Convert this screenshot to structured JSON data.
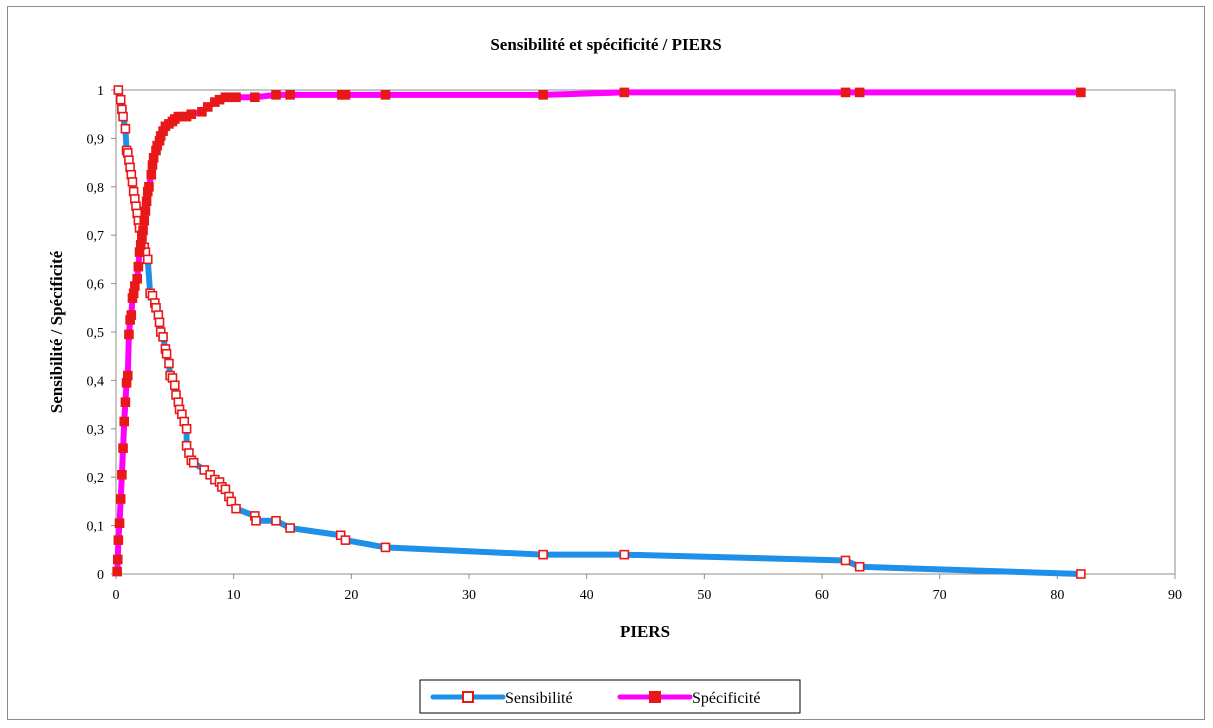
{
  "chart_data": {
    "type": "line",
    "title": "Sensibilité et spécificité / PIERS",
    "xlabel": "PIERS",
    "ylabel": "Sensibilité / Spécificité",
    "xlim": [
      0,
      90
    ],
    "ylim": [
      0,
      1
    ],
    "x_ticks": [
      "0",
      "10",
      "20",
      "30",
      "40",
      "50",
      "60",
      "70",
      "80",
      "90"
    ],
    "y_ticks": [
      "0",
      "0,1",
      "0,2",
      "0,3",
      "0,4",
      "0,5",
      "0,6",
      "0,7",
      "0,8",
      "0,9",
      "1"
    ],
    "grid": false,
    "legend_position": "bottom",
    "series": [
      {
        "name": "Sensibilité",
        "line_color": "#1e90e8",
        "marker": "open-square",
        "marker_color": "#e81818",
        "points": [
          [
            0.2,
            1.0
          ],
          [
            0.4,
            0.98
          ],
          [
            0.5,
            0.96
          ],
          [
            0.6,
            0.945
          ],
          [
            0.8,
            0.92
          ],
          [
            0.9,
            0.875
          ],
          [
            1.0,
            0.87
          ],
          [
            1.1,
            0.855
          ],
          [
            1.2,
            0.84
          ],
          [
            1.3,
            0.825
          ],
          [
            1.4,
            0.81
          ],
          [
            1.5,
            0.79
          ],
          [
            1.6,
            0.775
          ],
          [
            1.7,
            0.76
          ],
          [
            1.8,
            0.745
          ],
          [
            1.9,
            0.73
          ],
          [
            2.0,
            0.715
          ],
          [
            2.2,
            0.7
          ],
          [
            2.4,
            0.675
          ],
          [
            2.5,
            0.665
          ],
          [
            2.7,
            0.65
          ],
          [
            2.9,
            0.58
          ],
          [
            3.1,
            0.575
          ],
          [
            3.3,
            0.56
          ],
          [
            3.4,
            0.55
          ],
          [
            3.6,
            0.535
          ],
          [
            3.7,
            0.52
          ],
          [
            3.8,
            0.5
          ],
          [
            4.0,
            0.49
          ],
          [
            4.2,
            0.465
          ],
          [
            4.3,
            0.455
          ],
          [
            4.5,
            0.435
          ],
          [
            4.6,
            0.41
          ],
          [
            4.8,
            0.405
          ],
          [
            5.0,
            0.39
          ],
          [
            5.1,
            0.37
          ],
          [
            5.3,
            0.355
          ],
          [
            5.4,
            0.34
          ],
          [
            5.6,
            0.33
          ],
          [
            5.8,
            0.315
          ],
          [
            6.0,
            0.3
          ],
          [
            6.0,
            0.265
          ],
          [
            6.2,
            0.25
          ],
          [
            6.4,
            0.235
          ],
          [
            6.6,
            0.23
          ],
          [
            7.5,
            0.215
          ],
          [
            8.0,
            0.205
          ],
          [
            8.4,
            0.195
          ],
          [
            8.8,
            0.19
          ],
          [
            9.0,
            0.18
          ],
          [
            9.3,
            0.175
          ],
          [
            9.6,
            0.16
          ],
          [
            9.8,
            0.15
          ],
          [
            10.2,
            0.135
          ],
          [
            11.8,
            0.12
          ],
          [
            11.9,
            0.11
          ],
          [
            13.6,
            0.11
          ],
          [
            14.8,
            0.095
          ],
          [
            19.1,
            0.08
          ],
          [
            19.5,
            0.07
          ],
          [
            22.9,
            0.055
          ],
          [
            36.3,
            0.04
          ],
          [
            43.2,
            0.04
          ],
          [
            62.0,
            0.028
          ],
          [
            63.2,
            0.015
          ],
          [
            82.0,
            0.0
          ]
        ]
      },
      {
        "name": "Spécificité",
        "line_color": "#ff00ff",
        "marker": "filled-square",
        "marker_color": "#e81818",
        "points": [
          [
            0.1,
            0.005
          ],
          [
            0.15,
            0.03
          ],
          [
            0.2,
            0.07
          ],
          [
            0.3,
            0.105
          ],
          [
            0.4,
            0.155
          ],
          [
            0.5,
            0.205
          ],
          [
            0.6,
            0.26
          ],
          [
            0.7,
            0.315
          ],
          [
            0.8,
            0.355
          ],
          [
            0.9,
            0.395
          ],
          [
            1.0,
            0.41
          ],
          [
            1.1,
            0.495
          ],
          [
            1.2,
            0.525
          ],
          [
            1.3,
            0.535
          ],
          [
            1.4,
            0.57
          ],
          [
            1.5,
            0.58
          ],
          [
            1.6,
            0.595
          ],
          [
            1.8,
            0.61
          ],
          [
            1.9,
            0.635
          ],
          [
            2.0,
            0.665
          ],
          [
            2.1,
            0.68
          ],
          [
            2.2,
            0.695
          ],
          [
            2.3,
            0.71
          ],
          [
            2.4,
            0.73
          ],
          [
            2.5,
            0.75
          ],
          [
            2.6,
            0.77
          ],
          [
            2.7,
            0.79
          ],
          [
            2.8,
            0.8
          ],
          [
            3.0,
            0.825
          ],
          [
            3.1,
            0.845
          ],
          [
            3.2,
            0.86
          ],
          [
            3.4,
            0.875
          ],
          [
            3.5,
            0.885
          ],
          [
            3.7,
            0.895
          ],
          [
            3.8,
            0.905
          ],
          [
            4.0,
            0.915
          ],
          [
            4.2,
            0.925
          ],
          [
            4.5,
            0.93
          ],
          [
            4.8,
            0.935
          ],
          [
            5.0,
            0.94
          ],
          [
            5.3,
            0.945
          ],
          [
            5.6,
            0.945
          ],
          [
            6.0,
            0.945
          ],
          [
            6.4,
            0.95
          ],
          [
            7.3,
            0.955
          ],
          [
            7.8,
            0.965
          ],
          [
            8.4,
            0.975
          ],
          [
            8.8,
            0.98
          ],
          [
            9.3,
            0.985
          ],
          [
            9.8,
            0.985
          ],
          [
            10.2,
            0.985
          ],
          [
            11.8,
            0.985
          ],
          [
            13.6,
            0.99
          ],
          [
            14.8,
            0.99
          ],
          [
            19.2,
            0.99
          ],
          [
            19.5,
            0.99
          ],
          [
            22.9,
            0.99
          ],
          [
            36.3,
            0.99
          ],
          [
            43.2,
            0.995
          ],
          [
            62.0,
            0.995
          ],
          [
            63.2,
            0.995
          ],
          [
            82.0,
            0.995
          ]
        ]
      }
    ]
  }
}
